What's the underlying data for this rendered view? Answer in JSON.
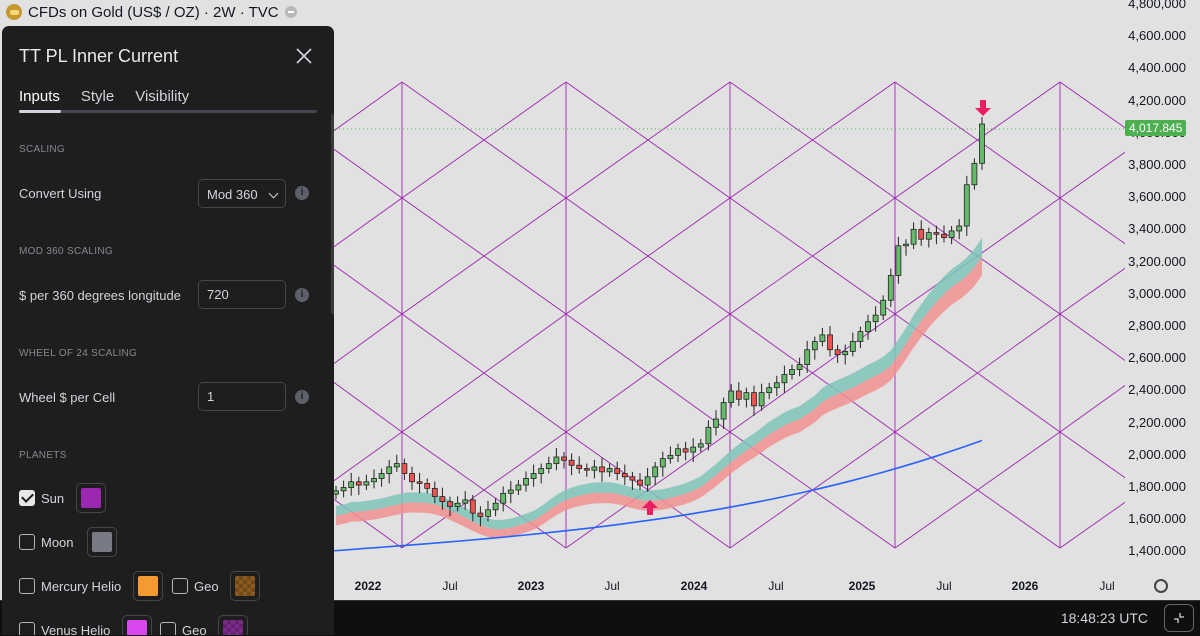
{
  "symbol": {
    "title": "CFDs on Gold (US$ / OZ) · 2W · TVC"
  },
  "price_axis": {
    "labels": [
      "4,800,000",
      "4,600.000",
      "4,400.000",
      "4,200.000",
      "4,000.000",
      "3,800.000",
      "3,600.000",
      "3,400.000",
      "3,200.000",
      "3,000.000",
      "2,800.000",
      "2,600.000",
      "2,400.000",
      "2,200.000",
      "2,000.000",
      "1,800.000",
      "1,600.000",
      "1,400.000"
    ],
    "last_price": "4,017.845",
    "last_price_color": "#4caf50"
  },
  "time_axis": {
    "labels": [
      {
        "text": "2022",
        "bold": true
      },
      {
        "text": "Jul",
        "bold": false
      },
      {
        "text": "2023",
        "bold": true
      },
      {
        "text": "Jul",
        "bold": false
      },
      {
        "text": "2024",
        "bold": true
      },
      {
        "text": "Jul",
        "bold": false
      },
      {
        "text": "2025",
        "bold": true
      },
      {
        "text": "Jul",
        "bold": false
      },
      {
        "text": "2026",
        "bold": true
      },
      {
        "text": "Jul",
        "bold": false
      }
    ]
  },
  "chart_data": {
    "type": "candlestick",
    "price_range": [
      1400,
      4800
    ],
    "grid_color": "#9c27b0",
    "band_colors": {
      "green": "#7fc4b8",
      "red": "#f0908f"
    },
    "slow_ma_color": "#2962ff",
    "arrows": [
      {
        "direction": "up",
        "date": "2023-10",
        "color": "#e91e63"
      },
      {
        "direction": "down",
        "date": "2025-10",
        "color": "#e91e63"
      }
    ],
    "candles_close": [
      1795,
      1815,
      1850,
      1830,
      1850,
      1870,
      1900,
      1940,
      1960,
      1900,
      1850,
      1840,
      1810,
      1760,
      1730,
      1700,
      1720,
      1740,
      1660,
      1640,
      1680,
      1720,
      1780,
      1800,
      1830,
      1870,
      1900,
      1930,
      1960,
      2000,
      1980,
      1950,
      1930,
      1920,
      1940,
      1910,
      1930,
      1900,
      1880,
      1860,
      1830,
      1880,
      1940,
      1990,
      2010,
      2050,
      2030,
      2060,
      2080,
      2180,
      2230,
      2330,
      2400,
      2350,
      2390,
      2310,
      2390,
      2420,
      2450,
      2500,
      2530,
      2560,
      2650,
      2700,
      2740,
      2650,
      2620,
      2640,
      2700,
      2760,
      2820,
      2860,
      2950,
      3100,
      3280,
      3290,
      3380,
      3320,
      3360,
      3350,
      3330,
      3370,
      3400,
      3650,
      3780,
      4018
    ]
  },
  "status": {
    "clock": "18:48:23 UTC"
  },
  "dialog": {
    "title": "TT PL Inner Current",
    "tabs": [
      "Inputs",
      "Style",
      "Visibility"
    ],
    "sections": {
      "scaling": "SCALING",
      "mod360": "MOD 360 SCALING",
      "wheel": "WHEEL OF 24 SCALING",
      "planets": "PLANETS"
    },
    "convert_using": {
      "label": "Convert Using",
      "value": "Mod 360"
    },
    "dollars_per_360": {
      "label": "$ per 360 degrees longitude",
      "value": "720"
    },
    "wheel_per_cell": {
      "label": "Wheel $ per Cell",
      "value": "1"
    },
    "info_glyph": "i",
    "planets": [
      {
        "label": "Sun",
        "checked": true,
        "color": "#9c27b0"
      },
      {
        "label": "Moon",
        "checked": false,
        "color": "#787b86"
      },
      {
        "label": "Mercury Helio",
        "checked": false,
        "color": "#f59a33",
        "geo_label": "Geo",
        "geo_checked": false,
        "geo_color": "#8a5a1f"
      },
      {
        "label": "Venus Helio",
        "checked": false,
        "color": "#d946ef",
        "geo_label": "Geo",
        "geo_checked": false,
        "geo_color": "#7b2b8a"
      }
    ]
  }
}
